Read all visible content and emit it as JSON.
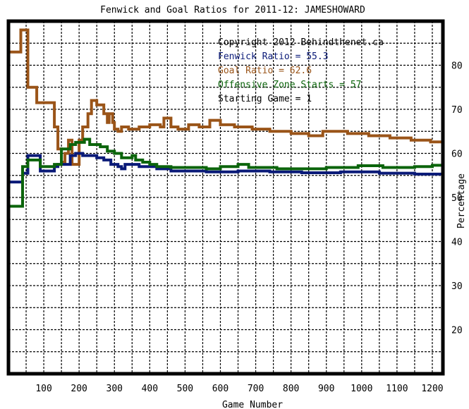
{
  "chart_data": {
    "type": "line",
    "title": "Fenwick and Goal Ratios for 2011-12: JAMESHOWARD",
    "xlabel": "Game Number",
    "ylabel": "Percentage",
    "xlim": [
      0,
      1230
    ],
    "ylim": [
      10,
      90
    ],
    "x_ticks": [
      100,
      200,
      300,
      400,
      500,
      600,
      700,
      800,
      900,
      1000,
      1100,
      1200
    ],
    "y_ticks": [
      20,
      30,
      40,
      50,
      60,
      70,
      80
    ],
    "grid": true,
    "legend": [
      {
        "text": "Copyright 2012 Behindthenet.ca",
        "color": "#000000"
      },
      {
        "text": "Fenwick Ratio = 55.3",
        "color": "#0a1a78"
      },
      {
        "text": "Goal Ratio = 62.6",
        "color": "#9a5418"
      },
      {
        "text": "Offensive Zone Starts = 57",
        "color": "#0b640b"
      },
      {
        "text": "Starting Game = 1",
        "color": "#000000"
      }
    ],
    "legend_position": "top-right",
    "series": [
      {
        "color": "#9a5418",
        "points": [
          [
            0,
            83
          ],
          [
            35,
            83
          ],
          [
            35,
            88
          ],
          [
            55,
            88
          ],
          [
            55,
            75
          ],
          [
            80,
            75
          ],
          [
            80,
            71.5
          ],
          [
            130,
            71.5
          ],
          [
            130,
            66
          ],
          [
            140,
            66
          ],
          [
            140,
            61
          ],
          [
            150,
            61
          ],
          [
            150,
            58
          ],
          [
            160,
            58
          ],
          [
            160,
            60
          ],
          [
            170,
            60
          ],
          [
            170,
            63
          ],
          [
            180,
            63
          ],
          [
            180,
            57.5
          ],
          [
            200,
            57.5
          ],
          [
            200,
            63
          ],
          [
            210,
            63
          ],
          [
            210,
            66
          ],
          [
            225,
            66
          ],
          [
            225,
            69
          ],
          [
            235,
            69
          ],
          [
            235,
            72
          ],
          [
            250,
            72
          ],
          [
            250,
            71
          ],
          [
            270,
            71
          ],
          [
            270,
            69
          ],
          [
            280,
            69
          ],
          [
            280,
            67
          ],
          [
            285,
            67
          ],
          [
            285,
            69
          ],
          [
            295,
            69
          ],
          [
            295,
            67
          ],
          [
            300,
            67
          ],
          [
            300,
            65.5
          ],
          [
            310,
            65.5
          ],
          [
            310,
            65
          ],
          [
            320,
            65
          ],
          [
            320,
            66
          ],
          [
            340,
            66
          ],
          [
            340,
            65.5
          ],
          [
            370,
            65.5
          ],
          [
            370,
            66
          ],
          [
            400,
            66
          ],
          [
            400,
            66.5
          ],
          [
            430,
            66.5
          ],
          [
            430,
            66
          ],
          [
            440,
            66
          ],
          [
            440,
            68
          ],
          [
            460,
            68
          ],
          [
            460,
            66
          ],
          [
            480,
            66
          ],
          [
            480,
            65.5
          ],
          [
            510,
            65.5
          ],
          [
            510,
            66.5
          ],
          [
            540,
            66.5
          ],
          [
            540,
            66
          ],
          [
            570,
            66
          ],
          [
            570,
            67.5
          ],
          [
            600,
            67.5
          ],
          [
            600,
            66.5
          ],
          [
            640,
            66.5
          ],
          [
            640,
            66
          ],
          [
            690,
            66
          ],
          [
            690,
            65.5
          ],
          [
            740,
            65.5
          ],
          [
            740,
            65
          ],
          [
            800,
            65
          ],
          [
            800,
            64.5
          ],
          [
            850,
            64.5
          ],
          [
            850,
            64
          ],
          [
            890,
            64
          ],
          [
            890,
            65
          ],
          [
            960,
            65
          ],
          [
            960,
            64.5
          ],
          [
            1020,
            64.5
          ],
          [
            1020,
            64
          ],
          [
            1080,
            64
          ],
          [
            1080,
            63.5
          ],
          [
            1140,
            63.5
          ],
          [
            1140,
            63
          ],
          [
            1195,
            63
          ],
          [
            1195,
            62.6
          ],
          [
            1230,
            62.6
          ]
        ]
      },
      {
        "color": "#0a1a78",
        "points": [
          [
            0,
            53.5
          ],
          [
            40,
            53.5
          ],
          [
            40,
            55.5
          ],
          [
            55,
            55.5
          ],
          [
            55,
            59.5
          ],
          [
            90,
            59.5
          ],
          [
            90,
            56
          ],
          [
            130,
            56
          ],
          [
            130,
            57
          ],
          [
            140,
            57
          ],
          [
            140,
            57.5
          ],
          [
            175,
            57.5
          ],
          [
            175,
            59.5
          ],
          [
            190,
            59.5
          ],
          [
            190,
            60
          ],
          [
            210,
            60
          ],
          [
            210,
            59.5
          ],
          [
            250,
            59.5
          ],
          [
            250,
            59
          ],
          [
            270,
            59
          ],
          [
            270,
            58.5
          ],
          [
            290,
            58.5
          ],
          [
            290,
            57.5
          ],
          [
            310,
            57.5
          ],
          [
            310,
            57
          ],
          [
            320,
            57
          ],
          [
            320,
            56.5
          ],
          [
            330,
            56.5
          ],
          [
            330,
            57.5
          ],
          [
            370,
            57.5
          ],
          [
            370,
            57
          ],
          [
            420,
            57
          ],
          [
            420,
            56.5
          ],
          [
            460,
            56.5
          ],
          [
            460,
            56
          ],
          [
            560,
            56
          ],
          [
            560,
            55.8
          ],
          [
            650,
            55.8
          ],
          [
            650,
            56
          ],
          [
            740,
            56
          ],
          [
            740,
            55.8
          ],
          [
            830,
            55.8
          ],
          [
            830,
            55.6
          ],
          [
            940,
            55.6
          ],
          [
            940,
            55.8
          ],
          [
            1050,
            55.8
          ],
          [
            1050,
            55.5
          ],
          [
            1150,
            55.5
          ],
          [
            1150,
            55.3
          ],
          [
            1230,
            55.3
          ]
        ]
      },
      {
        "color": "#0b640b",
        "points": [
          [
            0,
            48
          ],
          [
            40,
            48
          ],
          [
            40,
            57
          ],
          [
            55,
            57
          ],
          [
            55,
            58.5
          ],
          [
            90,
            58.5
          ],
          [
            90,
            57
          ],
          [
            130,
            57
          ],
          [
            130,
            57.5
          ],
          [
            150,
            57.5
          ],
          [
            150,
            61
          ],
          [
            175,
            61
          ],
          [
            175,
            62
          ],
          [
            190,
            62
          ],
          [
            190,
            62.5
          ],
          [
            215,
            62.5
          ],
          [
            215,
            63.2
          ],
          [
            230,
            63.2
          ],
          [
            230,
            62
          ],
          [
            260,
            62
          ],
          [
            260,
            61.5
          ],
          [
            280,
            61.5
          ],
          [
            280,
            60.5
          ],
          [
            300,
            60.5
          ],
          [
            300,
            60
          ],
          [
            320,
            60
          ],
          [
            320,
            59
          ],
          [
            350,
            59
          ],
          [
            350,
            59.5
          ],
          [
            360,
            59.5
          ],
          [
            360,
            58.5
          ],
          [
            380,
            58.5
          ],
          [
            380,
            58
          ],
          [
            400,
            58
          ],
          [
            400,
            57.5
          ],
          [
            420,
            57.5
          ],
          [
            420,
            57
          ],
          [
            460,
            57
          ],
          [
            460,
            56.8
          ],
          [
            560,
            56.8
          ],
          [
            560,
            56.5
          ],
          [
            600,
            56.5
          ],
          [
            600,
            57
          ],
          [
            650,
            57
          ],
          [
            650,
            57.5
          ],
          [
            680,
            57.5
          ],
          [
            680,
            56.8
          ],
          [
            760,
            56.8
          ],
          [
            760,
            56.5
          ],
          [
            900,
            56.5
          ],
          [
            900,
            56.8
          ],
          [
            990,
            56.8
          ],
          [
            990,
            57.2
          ],
          [
            1060,
            57.2
          ],
          [
            1060,
            56.8
          ],
          [
            1150,
            56.8
          ],
          [
            1150,
            57
          ],
          [
            1200,
            57
          ],
          [
            1200,
            57.3
          ],
          [
            1230,
            57.3
          ]
        ]
      }
    ]
  }
}
